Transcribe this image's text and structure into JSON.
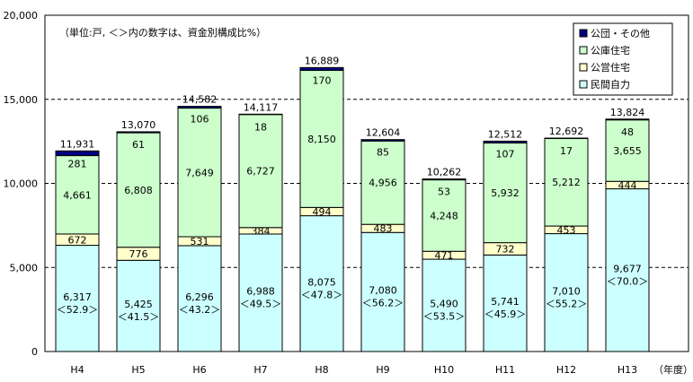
{
  "chart_data": {
    "type": "stacked-bar",
    "note": "（単位:戸, ＜＞内の数字は、資金別構成比%）",
    "x_unit_label": "（年度）",
    "categories": [
      "H4",
      "H5",
      "H6",
      "H7",
      "H8",
      "H9",
      "H10",
      "H11",
      "H12",
      "H13"
    ],
    "ylim": [
      0,
      20000
    ],
    "y_ticks": [
      "0",
      "5,000",
      "10,000",
      "15,000",
      "20,000"
    ],
    "y_tick_values": [
      0,
      5000,
      10000,
      15000,
      20000
    ],
    "grid": "dashed horizontal at 5,000 / 10,000 / 15,000",
    "legend_position": "top-right",
    "series": [
      {
        "name": "民間自力",
        "color": "#ccffff",
        "values": [
          6317,
          5425,
          6296,
          6988,
          8075,
          7080,
          5490,
          5741,
          7010,
          9677
        ],
        "value_labels": [
          "6,317",
          "5,425",
          "6,296",
          "6,988",
          "8,075",
          "7,080",
          "5,490",
          "5,741",
          "7,010",
          "9,677"
        ],
        "shares": [
          "＜52.9＞",
          "＜41.5＞",
          "＜43.2＞",
          "＜49.5＞",
          "＜47.8＞",
          "＜56.2＞",
          "＜53.5＞",
          "＜45.9＞",
          "＜55.2＞",
          "＜70.0＞"
        ]
      },
      {
        "name": "公営住宅",
        "color": "#ffffcc",
        "values": [
          672,
          776,
          531,
          384,
          494,
          483,
          471,
          732,
          453,
          444
        ],
        "value_labels": [
          "672",
          "776",
          "531",
          "384",
          "494",
          "483",
          "471",
          "732",
          "453",
          "444"
        ]
      },
      {
        "name": "公庫住宅",
        "color": "#ccffcc",
        "values": [
          4661,
          6808,
          7649,
          6727,
          8150,
          4956,
          4248,
          5932,
          5212,
          3655
        ],
        "value_labels": [
          "4,661",
          "6,808",
          "7,649",
          "6,727",
          "8,150",
          "4,956",
          "4,248",
          "5,932",
          "5,212",
          "3,655"
        ]
      },
      {
        "name": "公団・その他",
        "color": "#000080",
        "values": [
          281,
          61,
          106,
          18,
          170,
          85,
          53,
          107,
          17,
          48
        ],
        "value_labels": [
          "281",
          "61",
          "106",
          "18",
          "170",
          "85",
          "53",
          "107",
          "17",
          "48"
        ]
      }
    ],
    "totals": [
      11931,
      13070,
      14582,
      14117,
      16889,
      12604,
      10262,
      12512,
      12692,
      13824
    ],
    "total_labels": [
      "11,931",
      "13,070",
      "14,582",
      "14,117",
      "16,889",
      "12,604",
      "10,262",
      "12,512",
      "12,692",
      "13,824"
    ],
    "legend_order": [
      "公団・その他",
      "公庫住宅",
      "公営住宅",
      "民間自力"
    ]
  }
}
